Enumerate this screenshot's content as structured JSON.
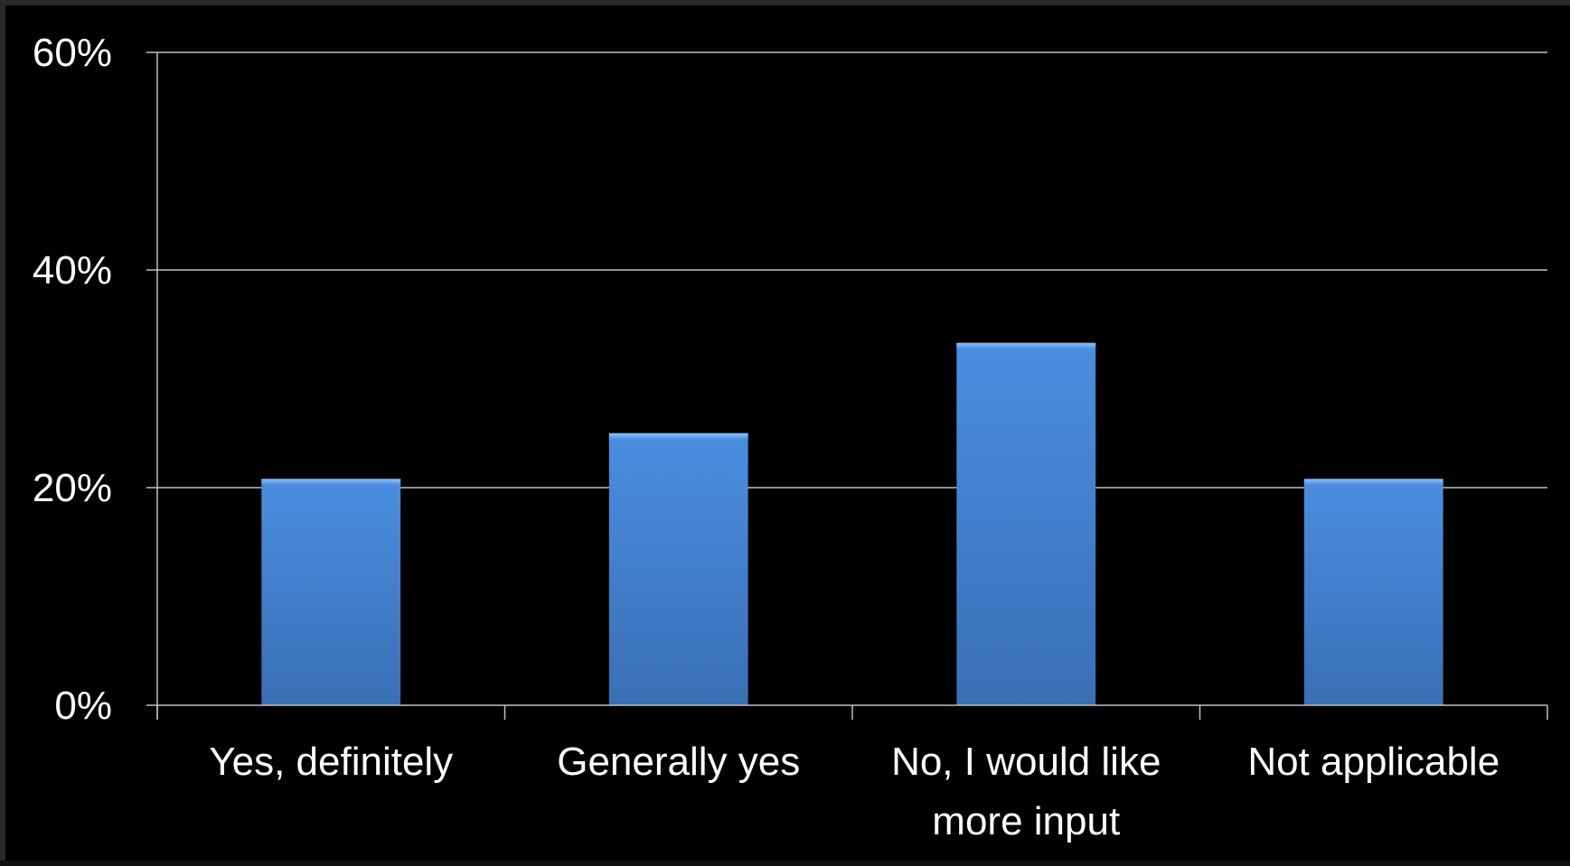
{
  "chart_data": {
    "type": "bar",
    "categories": [
      [
        "Yes, definitely"
      ],
      [
        "Generally yes"
      ],
      [
        "No, I would like",
        "more input"
      ],
      [
        "Not applicable"
      ]
    ],
    "values": [
      20.8,
      25.0,
      33.3,
      20.8
    ],
    "ylim": [
      0,
      60
    ],
    "yticks": [
      0,
      20,
      40,
      60
    ],
    "ytick_labels": [
      "0%",
      "20%",
      "40%",
      "60%"
    ],
    "grid": true,
    "colors": {
      "bar_top": "#4a8ee0",
      "bar_bottom": "#3a6fb5",
      "background": "#000000",
      "grid": "#bfbfbf",
      "text": "#ffffff"
    }
  }
}
